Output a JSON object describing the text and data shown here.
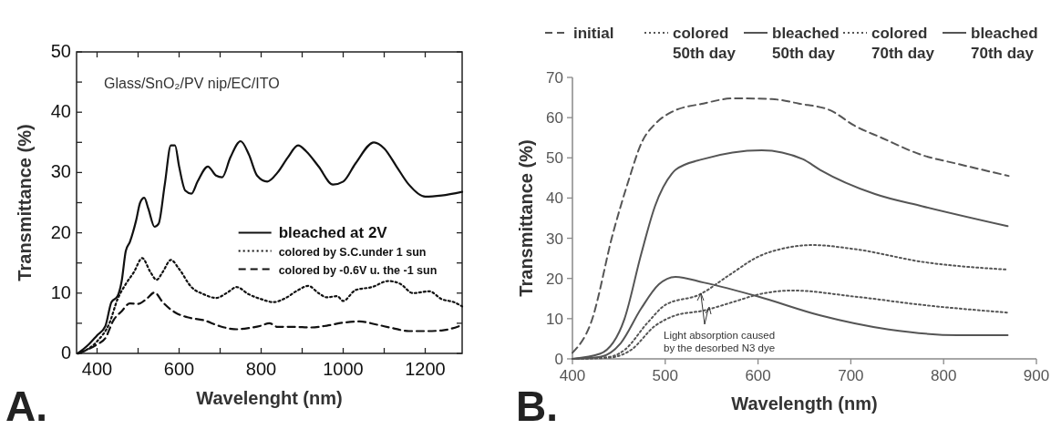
{
  "chart_data": [
    {
      "type": "line",
      "xlabel": "Wavelenght (nm)",
      "ylabel": "Transmittance (%)",
      "xlim": [
        350,
        1290
      ],
      "ylim": [
        0,
        50
      ],
      "xticks": [
        400,
        {
          "value": 500,
          "label": null
        },
        600,
        {
          "value": 700,
          "label": null
        },
        800,
        {
          "value": 900,
          "label": null
        },
        1000,
        {
          "value": 1100,
          "label": null
        },
        1200
      ],
      "yticks": [
        0,
        {
          "value": 5,
          "label": null
        },
        10,
        {
          "value": 15,
          "label": null
        },
        20,
        {
          "value": 25,
          "label": null
        },
        30,
        {
          "value": 35,
          "label": null
        },
        40,
        {
          "value": 45,
          "label": null
        },
        50
      ],
      "legend": "right",
      "annotations": [
        "A.",
        "Glass/SnO₂/PV nip/EC/ITO"
      ],
      "series": [
        {
          "name": "bleached at 2V",
          "color": "#111111",
          "line_style": "solid",
          "x": [
            353,
            380,
            400,
            420,
            435,
            450,
            460,
            470,
            480,
            495,
            505,
            515,
            525,
            540,
            550,
            565,
            580,
            590,
            600,
            615,
            630,
            645,
            670,
            690,
            705,
            725,
            750,
            770,
            790,
            815,
            840,
            865,
            890,
            910,
            940,
            975,
            1000,
            1030,
            1075,
            1100,
            1130,
            1160,
            1200,
            1240,
            1290
          ],
          "values": [
            0,
            1.5,
            3,
            4.5,
            8.5,
            9.5,
            12,
            17,
            18.5,
            22,
            25,
            25.8,
            24,
            21,
            21.5,
            28,
            34.5,
            34.5,
            31,
            27,
            26.5,
            28.5,
            31,
            29.5,
            29.2,
            32.5,
            35.2,
            33,
            29.5,
            28.5,
            30,
            32.5,
            34.5,
            33.5,
            31,
            28,
            28.5,
            31.5,
            35,
            34,
            31,
            28,
            26,
            26.2,
            26.8
          ]
        },
        {
          "name": "colored by S.C.under 1 sun",
          "color": "#111111",
          "line_style": "dotted",
          "x": [
            353,
            400,
            430,
            450,
            470,
            490,
            510,
            530,
            545,
            560,
            580,
            600,
            630,
            660,
            690,
            720,
            740,
            770,
            800,
            830,
            860,
            890,
            915,
            940,
            960,
            985,
            1000,
            1030,
            1070,
            1110,
            1140,
            1170,
            1210,
            1240,
            1270,
            1290
          ],
          "values": [
            0,
            2,
            5,
            9,
            11.5,
            13.5,
            15.8,
            13.5,
            12.2,
            13.5,
            15.5,
            14,
            11,
            9.8,
            9.2,
            10.2,
            11,
            9.8,
            9,
            8.5,
            9.2,
            10.5,
            11.2,
            10,
            9.3,
            9.5,
            8.7,
            10.5,
            11,
            12,
            11.5,
            10,
            10.3,
            9,
            8.5,
            7.8
          ]
        },
        {
          "name": "colored by -0.6V u. the -1 sun",
          "color": "#111111",
          "line_style": "dashed",
          "x": [
            355,
            400,
            420,
            440,
            460,
            480,
            500,
            520,
            540,
            560,
            590,
            620,
            660,
            700,
            740,
            770,
            800,
            820,
            840,
            880,
            920,
            960,
            1000,
            1040,
            1080,
            1120,
            1160,
            1200,
            1240,
            1290
          ],
          "values": [
            0,
            1.5,
            2.5,
            5.5,
            7,
            8.3,
            8.2,
            9,
            10.1,
            8.5,
            6.8,
            6,
            5.5,
            4.5,
            4,
            4.2,
            4.6,
            5,
            4.4,
            4.4,
            4.3,
            4.6,
            5.1,
            5.3,
            4.8,
            4.2,
            3.7,
            3.7,
            3.8,
            4.7
          ]
        }
      ]
    },
    {
      "type": "line",
      "xlabel": "Wavelength (nm)",
      "ylabel": "Transmittance (%)",
      "xlim": [
        400,
        900
      ],
      "ylim": [
        0,
        70
      ],
      "xticks": [
        400,
        500,
        600,
        700,
        800,
        900
      ],
      "yticks": [
        0,
        10,
        20,
        30,
        40,
        50,
        60,
        70
      ],
      "legend": "top",
      "annotations": [
        "B.",
        "Light absorption caused by the desorbed N3 dye"
      ],
      "series": [
        {
          "name": "initial",
          "color": "#555555",
          "line_style": "dashed",
          "x": [
            400,
            420,
            444,
            460,
            475,
            489,
            507,
            541,
            574,
            615,
            644,
            678,
            704,
            733,
            778,
            815,
            870
          ],
          "values": [
            1.5,
            9,
            31.5,
            44,
            54,
            58.4,
            61.4,
            63.5,
            64.8,
            64.6,
            63.5,
            61.8,
            58,
            55,
            50.6,
            48.5,
            45.5
          ]
        },
        {
          "name": "colored 50th day",
          "color": "#555555",
          "line_style": "dotted",
          "x": [
            400,
            440,
            456,
            481,
            500,
            537,
            570,
            600,
            630,
            659,
            704,
            778,
            869
          ],
          "values": [
            0,
            0.5,
            2.2,
            9,
            13.4,
            16,
            21,
            25.4,
            27.6,
            28.3,
            27.3,
            24.1,
            22.2
          ]
        },
        {
          "name": "bleached 50th day",
          "color": "#555555",
          "line_style": "solid",
          "x": [
            400,
            430,
            456,
            474,
            489,
            507,
            511,
            541,
            604,
            648,
            667,
            726,
            778,
            869
          ],
          "values": [
            0,
            1.3,
            9.9,
            26,
            38,
            46,
            47,
            49.7,
            51.9,
            49.7,
            47,
            41,
            37.9,
            33
          ]
        },
        {
          "name": "colored 70th day",
          "color": "#555555",
          "line_style": "dotted",
          "x": [
            400,
            440,
            463,
            489,
            511,
            541,
            574,
            600,
            637,
            704,
            778,
            869
          ],
          "values": [
            0,
            0.3,
            2.2,
            8.2,
            10.8,
            12,
            14.2,
            16,
            17,
            15.5,
            13.4,
            11.5
          ]
        },
        {
          "name": "bleached 70th day",
          "color": "#555555",
          "line_style": "solid",
          "x": [
            400,
            430,
            452,
            474,
            493,
            511,
            541,
            600,
            667,
            741,
            815,
            869
          ],
          "values": [
            0,
            0.5,
            3.9,
            12.5,
            18.5,
            20.4,
            19,
            15.5,
            10.8,
            7.3,
            5.9,
            5.9
          ]
        }
      ]
    }
  ]
}
